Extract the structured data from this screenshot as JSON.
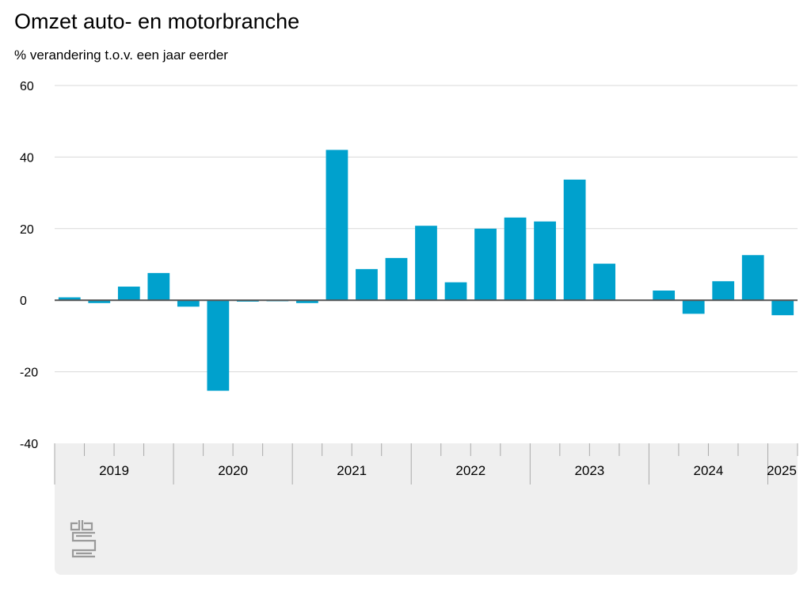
{
  "header": {
    "title": "Omzet auto- en motorbranche",
    "subtitle": "% verandering t.o.v. een jaar eerder"
  },
  "logo": {
    "icon": "cbs-logo-icon"
  },
  "colors": {
    "bar": "#00a1cd",
    "grid": "#d9d9d9",
    "zero": "#555555",
    "panel": "#efefef"
  },
  "chart_data": {
    "type": "bar",
    "title": "Omzet auto- en motorbranche",
    "subtitle": "% verandering t.o.v. een jaar eerder",
    "ylim": [
      -40,
      60
    ],
    "yticks": [
      60,
      40,
      20,
      0,
      -20,
      -40
    ],
    "grid": true,
    "legend": "none",
    "categories": [
      "2019 Q1",
      "2019 Q2",
      "2019 Q3",
      "2019 Q4",
      "2020 Q1",
      "2020 Q2",
      "2020 Q3",
      "2020 Q4",
      "2021 Q1",
      "2021 Q2",
      "2021 Q3",
      "2021 Q4",
      "2022 Q1",
      "2022 Q2",
      "2022 Q3",
      "2022 Q4",
      "2023 Q1",
      "2023 Q2",
      "2023 Q3",
      "2023 Q4",
      "2024 Q1",
      "2024 Q2",
      "2024 Q3",
      "2024 Q4",
      "2025 Q1"
    ],
    "values": [
      0.8,
      -0.8,
      3.8,
      7.6,
      -1.8,
      -25.3,
      -0.4,
      -0.3,
      -0.8,
      42.0,
      8.7,
      11.8,
      20.8,
      5.0,
      20.0,
      23.1,
      22.0,
      33.7,
      10.2,
      0,
      2.7,
      -3.8,
      5.3,
      12.6,
      -4.2
    ],
    "year_labels": [
      "2019",
      "2020",
      "2021",
      "2022",
      "2023",
      "2024",
      "2025"
    ]
  }
}
